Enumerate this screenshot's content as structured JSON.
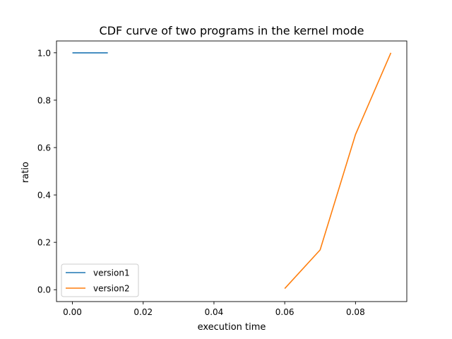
{
  "chart_data": {
    "type": "line",
    "title": "CDF curve of two programs in the kernel mode",
    "xlabel": "execution time",
    "ylabel": "ratio",
    "xlim": [
      -0.0045,
      0.0945
    ],
    "ylim": [
      -0.05,
      1.05
    ],
    "xticks": [
      0.0,
      0.02,
      0.04,
      0.06,
      0.08
    ],
    "xtick_labels": [
      "0.00",
      "0.02",
      "0.04",
      "0.06",
      "0.08"
    ],
    "yticks": [
      0.0,
      0.2,
      0.4,
      0.6,
      0.8,
      1.0
    ],
    "ytick_labels": [
      "0.0",
      "0.2",
      "0.4",
      "0.6",
      "0.8",
      "1.0"
    ],
    "grid": false,
    "legend_position": "lower-left",
    "series": [
      {
        "name": "version1",
        "color": "#1f77b4",
        "x": [
          0.0,
          0.01
        ],
        "y": [
          1.0,
          1.0
        ]
      },
      {
        "name": "version2",
        "color": "#ff7f0e",
        "x": [
          0.06,
          0.07,
          0.08,
          0.09
        ],
        "y": [
          0.005,
          0.168,
          0.655,
          1.0
        ]
      }
    ]
  }
}
